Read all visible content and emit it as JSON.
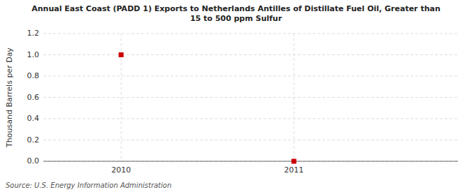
{
  "chart_data": {
    "type": "scatter",
    "title": "Annual East Coast (PADD 1) Exports to Netherlands Antilles of Distillate Fuel Oil, Greater than\n15 to 500 ppm Sulfur",
    "ylabel": "Thousand Barrels per Day",
    "source": "Source: U.S. Energy Information Administration",
    "x": [
      2010,
      2011
    ],
    "values": [
      1.0,
      0.0
    ],
    "color": "#cc0000",
    "marker": "square",
    "xlim": [
      2009.55,
      2011.95
    ],
    "ylim": [
      0.0,
      1.2
    ],
    "xticks": [
      2010,
      2011
    ],
    "yticks": [
      {
        "value": 0.0,
        "label": "0.0"
      },
      {
        "value": 0.2,
        "label": "0.2"
      },
      {
        "value": 0.4,
        "label": "0.4"
      },
      {
        "value": 0.6,
        "label": "0.6"
      },
      {
        "value": 0.8,
        "label": "0.8"
      },
      {
        "value": 1.0,
        "label": "1.0"
      },
      {
        "value": 1.2,
        "label": "1.2"
      }
    ],
    "grid": true
  }
}
